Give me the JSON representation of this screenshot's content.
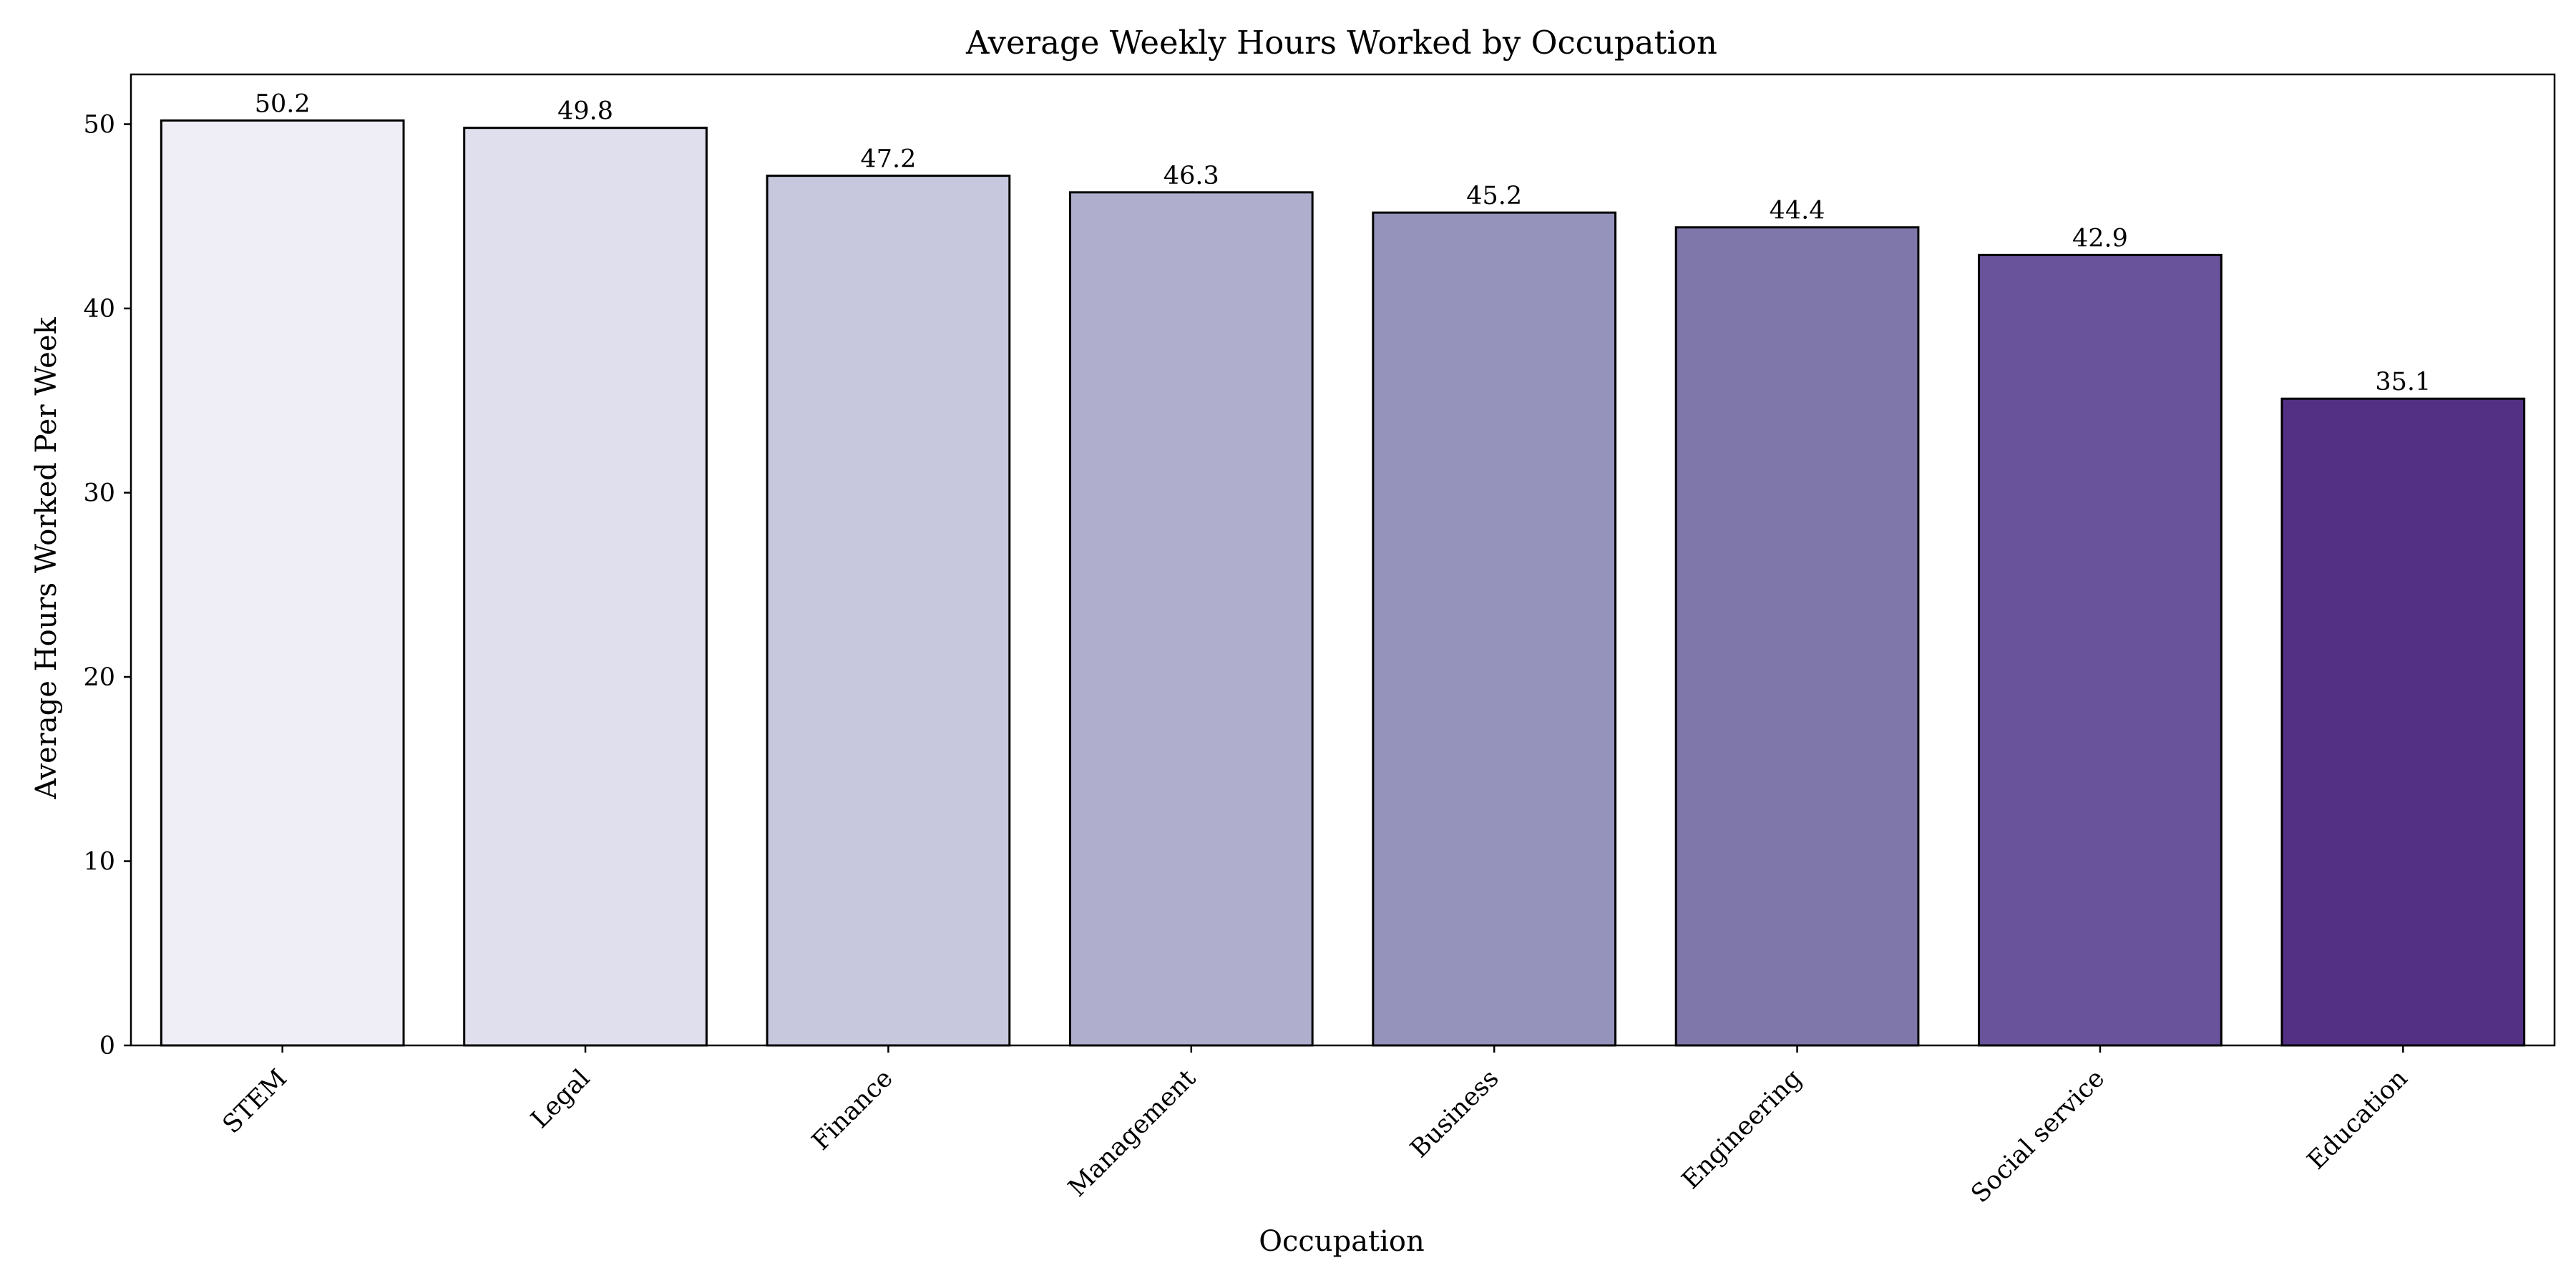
{
  "chart_data": {
    "type": "bar",
    "title": "Average Weekly Hours Worked by Occupation",
    "xlabel": "Occupation",
    "ylabel": "Average Hours Worked Per Week",
    "categories": [
      "STEM",
      "Legal",
      "Finance",
      "Management",
      "Business",
      "Engineering",
      "Social service",
      "Education"
    ],
    "values": [
      50.2,
      49.8,
      47.2,
      46.3,
      45.2,
      44.4,
      42.9,
      35.1
    ],
    "value_labels": [
      "50.2",
      "49.8",
      "47.2",
      "46.3",
      "45.2",
      "44.4",
      "42.9",
      "35.1"
    ],
    "colors": [
      "#efedf5",
      "#e0dfed",
      "#c7c8de",
      "#afafcd",
      "#9593bb",
      "#7f77aa",
      "#69539a",
      "#543085"
    ],
    "ylim": [
      0,
      52.7
    ],
    "yticks": [
      0,
      10,
      20,
      30,
      40,
      50
    ],
    "ytick_labels": [
      "0",
      "10",
      "20",
      "30",
      "40",
      "50"
    ],
    "grid": false,
    "legend": "none"
  }
}
